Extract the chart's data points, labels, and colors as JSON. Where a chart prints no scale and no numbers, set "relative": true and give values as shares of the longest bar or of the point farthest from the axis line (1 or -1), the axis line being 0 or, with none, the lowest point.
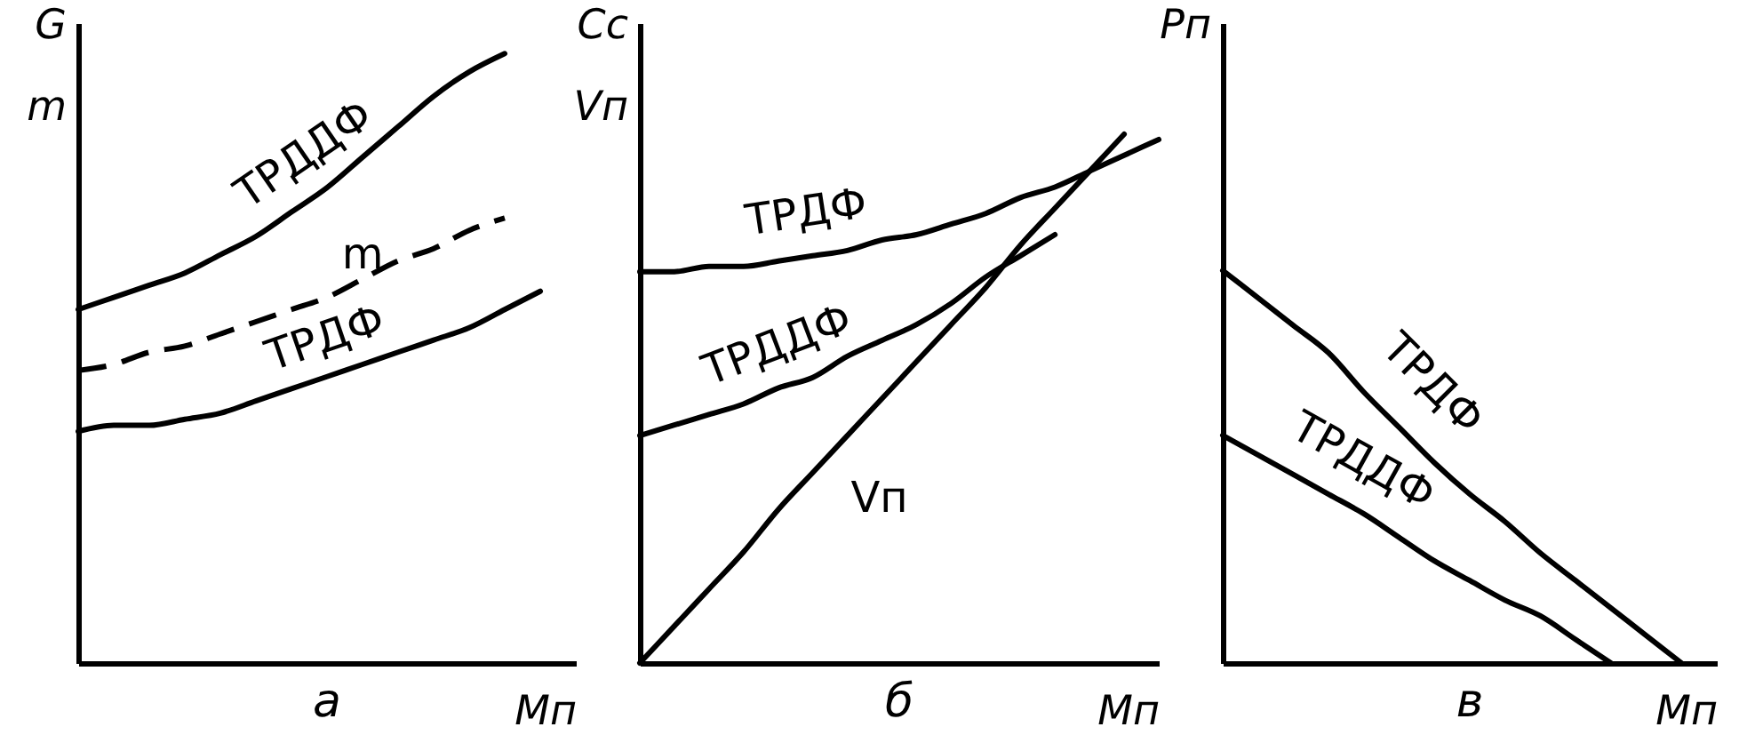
{
  "chart_data": [
    {
      "type": "line",
      "title": "а",
      "xlabel": "Mп",
      "ylabel": "G\nm",
      "relative": true,
      "grid": false,
      "tick_labels": false,
      "marker": "none",
      "line_style": "solid",
      "categories": [
        null,
        null,
        null,
        null,
        null,
        null,
        null,
        null,
        null,
        null,
        null,
        null,
        null,
        null,
        null
      ],
      "series": [
        {
          "name": "ТРДДФ",
          "color": "#000000",
          "values": [
            0.58,
            0.6,
            0.62,
            0.64,
            0.67,
            0.7,
            0.74,
            0.78,
            0.83,
            0.88,
            0.93,
            0.97,
            1.0,
            null,
            null
          ]
        },
        {
          "name": "m",
          "color": "#000000",
          "line_style": "dashed",
          "values": [
            0.48,
            0.49,
            0.51,
            0.52,
            0.54,
            0.56,
            0.58,
            0.6,
            0.63,
            0.66,
            0.68,
            0.71,
            0.73,
            null,
            null
          ]
        },
        {
          "name": "ТРДФ",
          "color": "#000000",
          "values": [
            0.38,
            0.39,
            0.39,
            0.4,
            0.41,
            0.43,
            0.45,
            0.47,
            0.49,
            0.51,
            0.53,
            0.55,
            0.58,
            0.61,
            null
          ]
        }
      ]
    },
    {
      "type": "line",
      "title": "б",
      "xlabel": "Mп",
      "ylabel": "Cc\nVп",
      "relative": true,
      "grid": false,
      "tick_labels": false,
      "marker": "none",
      "line_style": "solid",
      "categories": [
        null,
        null,
        null,
        null,
        null,
        null,
        null,
        null,
        null,
        null,
        null,
        null,
        null,
        null,
        null,
        null
      ],
      "series": [
        {
          "name": "ТРДФ",
          "color": "#000000",
          "values": [
            0.74,
            0.74,
            0.75,
            0.75,
            0.76,
            0.77,
            0.78,
            0.8,
            0.81,
            0.83,
            0.85,
            0.88,
            0.9,
            0.93,
            0.96,
            0.99
          ]
        },
        {
          "name": "ТРДДФ",
          "color": "#000000",
          "values": [
            0.43,
            0.45,
            0.47,
            0.49,
            0.52,
            0.54,
            0.58,
            0.61,
            0.64,
            0.68,
            0.73,
            0.77,
            0.81,
            null,
            null,
            null
          ]
        },
        {
          "name": "Vп",
          "color": "#000000",
          "values": [
            0.0,
            0.07,
            0.14,
            0.21,
            0.29,
            0.36,
            0.43,
            0.5,
            0.57,
            0.64,
            0.71,
            0.79,
            0.86,
            0.93,
            1.0,
            null
          ]
        }
      ]
    },
    {
      "type": "line",
      "title": "в",
      "xlabel": "Mп",
      "ylabel": "Pп",
      "relative": true,
      "grid": false,
      "tick_labels": false,
      "marker": "none",
      "line_style": "solid",
      "categories": [
        null,
        null,
        null,
        null,
        null,
        null,
        null,
        null,
        null,
        null,
        null,
        null,
        null,
        null,
        null
      ],
      "series": [
        {
          "name": "ТРДФ",
          "color": "#000000",
          "values": [
            1.0,
            0.93,
            0.86,
            0.79,
            0.69,
            0.6,
            0.51,
            0.43,
            0.36,
            0.28,
            0.21,
            0.14,
            0.07,
            0.0,
            null
          ]
        },
        {
          "name": "ТРДДФ",
          "color": "#000000",
          "values": [
            0.58,
            0.53,
            0.48,
            0.43,
            0.38,
            0.32,
            0.26,
            0.21,
            0.16,
            0.12,
            0.06,
            0.0,
            null,
            null,
            null
          ]
        }
      ]
    }
  ]
}
